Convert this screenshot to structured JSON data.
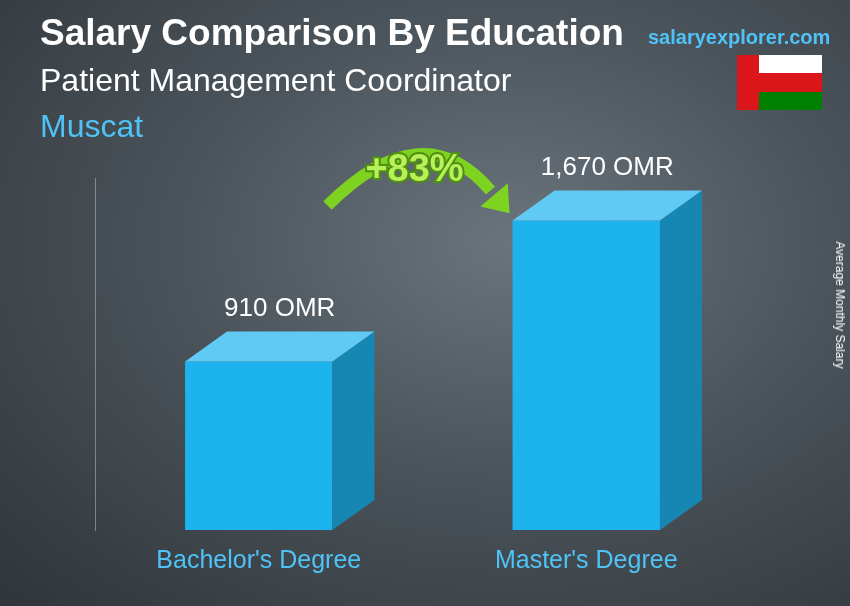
{
  "chart_data": {
    "type": "bar",
    "title": "Salary Comparison By Education",
    "subtitle": "Patient Management Coordinator",
    "location": "Muscat",
    "source": "salaryexplorer.com",
    "annotation": "+83%",
    "ylabel": "Average Monthly Salary",
    "categories": [
      "Bachelor's Degree",
      "Master's Degree"
    ],
    "values": [
      910,
      1670
    ],
    "value_labels": [
      "910 OMR",
      "1,670 OMR"
    ],
    "color": "#1db3ef",
    "ylim": [
      0,
      1900
    ],
    "data_labels": true,
    "tick_labels": "x",
    "grid": false
  }
}
